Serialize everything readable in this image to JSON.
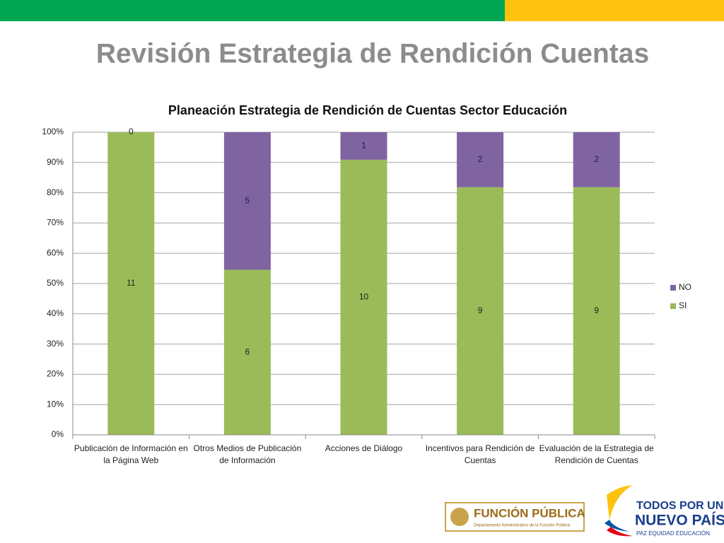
{
  "page_title": "Revisión Estrategia de Rendición Cuentas",
  "chart_data": {
    "type": "bar",
    "stacking": "percent",
    "title": "Planeación Estrategia de Rendición de Cuentas Sector Educación",
    "categories": [
      "Publicación de Información en la Página Web",
      "Otros Medios de Publicación de Información",
      "Acciones de Diálogo",
      "Incentivos para Rendición de Cuentas",
      "Evaluación de la Estrategia de Rendición de Cuentas"
    ],
    "series": [
      {
        "name": "SI",
        "color": "#9bbb59",
        "values": [
          11,
          6,
          10,
          9,
          9
        ]
      },
      {
        "name": "NO",
        "color": "#8064a2",
        "values": [
          0,
          5,
          1,
          2,
          2
        ]
      }
    ],
    "ylim": [
      0,
      100
    ],
    "yticks": [
      {
        "value": 0,
        "label": "0%"
      },
      {
        "value": 10,
        "label": "10%"
      },
      {
        "value": 20,
        "label": "20%"
      },
      {
        "value": 30,
        "label": "30%"
      },
      {
        "value": 40,
        "label": "40%"
      },
      {
        "value": 50,
        "label": "50%"
      },
      {
        "value": 60,
        "label": "60%"
      },
      {
        "value": 70,
        "label": "70%"
      },
      {
        "value": 80,
        "label": "80%"
      },
      {
        "value": 90,
        "label": "90%"
      },
      {
        "value": 100,
        "label": "100%"
      }
    ],
    "grid": true,
    "legend": "right"
  },
  "footer": {
    "funcion_publica": "FUNCIÓN PÚBLICA",
    "funcion_publica_sub": "Departamento Administrativo de la Función Pública",
    "slogan_1": "TODOS POR UN",
    "slogan_2": "NUEVO PAÍS",
    "slogan_3": "PAZ  EQUIDAD  EDUCACIÓN"
  }
}
